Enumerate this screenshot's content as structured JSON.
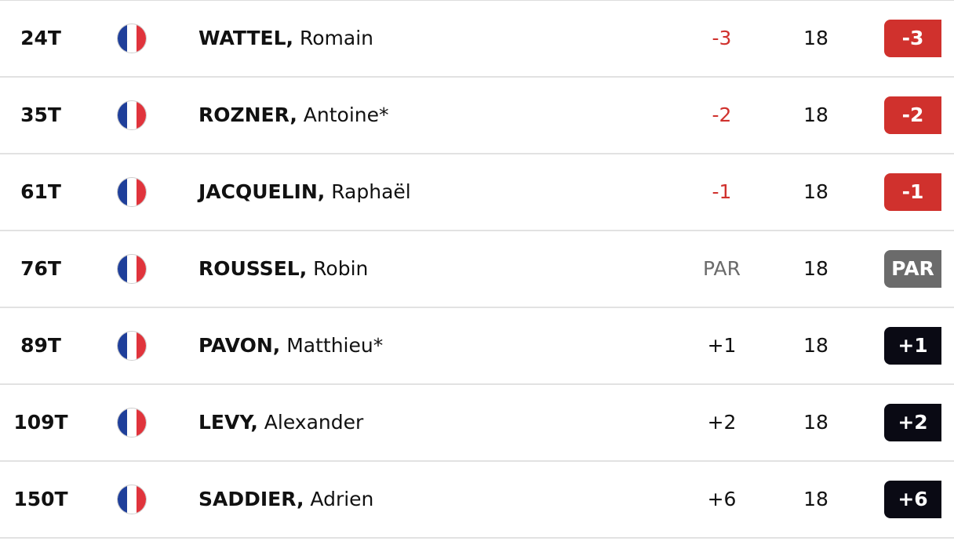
{
  "table": {
    "rows": [
      {
        "position": "24T",
        "last_name": "WATTEL,",
        "first_name": "Romain",
        "score": "-3",
        "thru": "18",
        "total": "-3",
        "score_color": "#d0312d",
        "badge_color": "#d0312d"
      },
      {
        "position": "35T",
        "last_name": "ROZNER,",
        "first_name": "Antoine*",
        "score": "-2",
        "thru": "18",
        "total": "-2",
        "score_color": "#d0312d",
        "badge_color": "#d0312d"
      },
      {
        "position": "61T",
        "last_name": "JACQUELIN,",
        "first_name": "Raphaël",
        "score": "-1",
        "thru": "18",
        "total": "-1",
        "score_color": "#d0312d",
        "badge_color": "#d0312d"
      },
      {
        "position": "76T",
        "last_name": "ROUSSEL,",
        "first_name": "Robin",
        "score": "PAR",
        "thru": "18",
        "total": "PAR",
        "score_color": "#6b6b6b",
        "badge_color": "#6b6b6b"
      },
      {
        "position": "89T",
        "last_name": "PAVON,",
        "first_name": "Matthieu*",
        "score": "+1",
        "thru": "18",
        "total": "+1",
        "score_color": "#111111",
        "badge_color": "#0a0a14"
      },
      {
        "position": "109T",
        "last_name": "LEVY,",
        "first_name": "Alexander",
        "score": "+2",
        "thru": "18",
        "total": "+2",
        "score_color": "#111111",
        "badge_color": "#0a0a14"
      },
      {
        "position": "150T",
        "last_name": "SADDIER,",
        "first_name": "Adrien",
        "score": "+6",
        "thru": "18",
        "total": "+6",
        "score_color": "#111111",
        "badge_color": "#0a0a14"
      }
    ]
  }
}
